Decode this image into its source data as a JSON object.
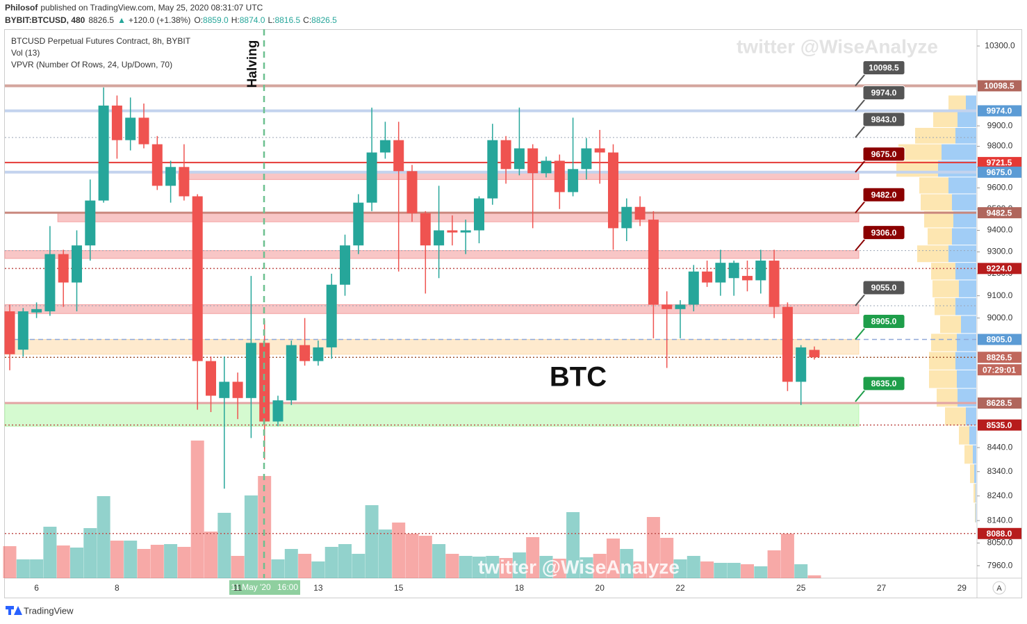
{
  "header": {
    "author": "Philosof",
    "published": "published on TradingView.com, May 25, 2020 08:31:07 UTC",
    "symbol": "BYBIT:BTCUSD, 480",
    "last": "8826.5",
    "arrow": "▲",
    "change": "+120.0 (+1.38%)",
    "o_label": "O:",
    "o": "8859.0",
    "h_label": "H:",
    "h": "8874.0",
    "l_label": "L:",
    "l": "8816.5",
    "c_label": "C:",
    "c": "8826.5"
  },
  "chart_data": {
    "type": "candlestick",
    "title": "BTCUSD Perpetual Futures Contract, 8h, BYBIT",
    "legend": [
      "Vol (13)",
      "VPVR (Number Of Rows, 24, Up/Down, 70)"
    ],
    "annotations": {
      "main": "BTC",
      "event": "Halving",
      "watermark": "twitter @WiseAnalyze",
      "crosshair_date": "11 May '20",
      "crosshair_time": "16:00",
      "countdown": "07:29:01"
    },
    "log_scale": true,
    "grid": false,
    "categories": [
      null,
      null,
      "6",
      null,
      null,
      null,
      null,
      null,
      "8",
      null,
      null,
      null,
      null,
      null,
      null,
      null,
      null,
      "11",
      null,
      null,
      null,
      null,
      null,
      "13",
      null,
      null,
      null,
      null,
      null,
      "15",
      null,
      null,
      null,
      null,
      null,
      null,
      null,
      null,
      "18",
      null,
      null,
      null,
      null,
      null,
      "20",
      null,
      null,
      null,
      null,
      null,
      "22",
      null,
      null,
      null,
      null,
      null,
      null,
      null,
      null,
      "25",
      null,
      null,
      null,
      null,
      null,
      "27",
      null,
      null,
      null,
      null,
      null,
      "29",
      null
    ],
    "open": [
      9030,
      8860,
      9025,
      9030,
      9290,
      9160,
      9330,
      9540,
      10000,
      9830,
      9940,
      9810,
      9610,
      9700,
      9560,
      8810,
      8650,
      8720,
      8650,
      8890,
      8550,
      8640,
      8880,
      8810,
      8870,
      9150,
      9330,
      9530,
      9770,
      9830,
      9680,
      9480,
      9330,
      9400,
      9390,
      9400,
      9550,
      9830,
      9690,
      9790,
      9670,
      9730,
      9580,
      9690,
      9790,
      9770,
      9410,
      9510,
      9450,
      9060,
      9040,
      9060,
      9210,
      9160,
      9180,
      9190,
      9170,
      9260,
      9050,
      8720,
      8859,
      null,
      null,
      null,
      null,
      null,
      null,
      null,
      null,
      null,
      null,
      null,
      null
    ],
    "high": [
      9060,
      9045,
      9070,
      9420,
      9310,
      9400,
      9640,
      10090,
      10050,
      10040,
      10010,
      9850,
      9730,
      9810,
      9570,
      8830,
      8830,
      8760,
      9190,
      8990,
      8660,
      8900,
      9000,
      8900,
      9200,
      9380,
      9570,
      9990,
      9920,
      9920,
      9710,
      9490,
      9610,
      9470,
      9450,
      9560,
      9910,
      9850,
      9990,
      9810,
      9750,
      9760,
      9940,
      9840,
      9880,
      9810,
      9550,
      9560,
      9490,
      9120,
      9080,
      9240,
      9260,
      9310,
      9260,
      9260,
      9310,
      9310,
      9070,
      8880,
      8874,
      null,
      null,
      null,
      null,
      null,
      null,
      null,
      null,
      null,
      null,
      null,
      null
    ],
    "low": [
      8770,
      8830,
      9000,
      9010,
      9050,
      9030,
      9260,
      9530,
      9740,
      9780,
      9790,
      9590,
      9530,
      9540,
      8600,
      8590,
      8270,
      8560,
      8480,
      8390,
      8530,
      8620,
      8790,
      8790,
      8820,
      9100,
      9290,
      9490,
      9740,
      9210,
      9440,
      9110,
      9180,
      9330,
      9290,
      9340,
      9520,
      9620,
      9660,
      9410,
      9650,
      9500,
      9560,
      9640,
      9620,
      9310,
      9350,
      9420,
      8910,
      8780,
      8910,
      9030,
      9140,
      9100,
      9100,
      9120,
      9110,
      9000,
      8680,
      8620,
      8816.5,
      null,
      null,
      null,
      null,
      null,
      null,
      null,
      null,
      null,
      null,
      null,
      null
    ],
    "close": [
      8840,
      9030,
      9040,
      9290,
      9160,
      9330,
      9540,
      10000,
      9830,
      9940,
      9810,
      9610,
      9700,
      9560,
      8810,
      8660,
      8720,
      8650,
      8890,
      8550,
      8640,
      8880,
      8810,
      8870,
      9150,
      9330,
      9530,
      9770,
      9830,
      9680,
      9480,
      9330,
      9400,
      9390,
      9400,
      9550,
      9830,
      9690,
      9790,
      9670,
      9730,
      9580,
      9690,
      9790,
      9770,
      9410,
      9510,
      9450,
      9060,
      9040,
      9060,
      9210,
      9160,
      9250,
      9250,
      9170,
      9260,
      9050,
      8720,
      8870,
      8826.5,
      null,
      null,
      null,
      null,
      null,
      null,
      null,
      null,
      null,
      null,
      null,
      null
    ],
    "volume": [
      46,
      27,
      27,
      74,
      47,
      44,
      72,
      118,
      54,
      54,
      42,
      48,
      49,
      45,
      198,
      67,
      94,
      32,
      119,
      147,
      27,
      42,
      35,
      24,
      45,
      49,
      35,
      105,
      70,
      80,
      64,
      61,
      49,
      35,
      32,
      31,
      32,
      29,
      37,
      59,
      32,
      28,
      95,
      30,
      35,
      57,
      42,
      24,
      88,
      58,
      27,
      32,
      24,
      22,
      22,
      20,
      17,
      40,
      64,
      20,
      4,
      null,
      null,
      null,
      null,
      null,
      null,
      null,
      null,
      null,
      null,
      null,
      null
    ],
    "up_color": "#26a69a",
    "down_color": "#ef5350",
    "ylim": [
      7911,
      10386
    ],
    "yticks": [
      {
        "value": 10300,
        "label": "10300.0"
      },
      {
        "value": 9900,
        "label": "9900.0"
      },
      {
        "value": 9800,
        "label": "9800.0"
      },
      {
        "value": 9700,
        "label": "9700.0"
      },
      {
        "value": 9600,
        "label": "9600.0"
      },
      {
        "value": 9500,
        "label": "9500.0"
      },
      {
        "value": 9400,
        "label": "9400.0"
      },
      {
        "value": 9300,
        "label": "9300.0"
      },
      {
        "value": 9200,
        "label": "9200.0"
      },
      {
        "value": 9100,
        "label": "9100.0"
      },
      {
        "value": 9000,
        "label": "9000.0"
      },
      {
        "value": 8440,
        "label": "8440.0"
      },
      {
        "value": 8340,
        "label": "8340.0"
      },
      {
        "value": 8240,
        "label": "8240.0"
      },
      {
        "value": 8140,
        "label": "8140.0"
      },
      {
        "value": 8050,
        "label": "8050.0"
      },
      {
        "value": 7960,
        "label": "7960.0"
      }
    ],
    "levels": [
      {
        "value": 10098.5,
        "label": "10098.5",
        "color": "#b0665c",
        "line": "#d4a59d",
        "style": "solid",
        "width": 4
      },
      {
        "value": 9974,
        "label": "9974.0",
        "color": "#5b9bd5",
        "line": "#c3d3ee",
        "style": "solid",
        "width": 4
      },
      {
        "value": 9843,
        "label": null,
        "color": null,
        "line": "#9aa5b5",
        "style": "dotted",
        "width": 1
      },
      {
        "value": 9721.5,
        "label": "9721.5",
        "color": "#e53935",
        "line": "#e53935",
        "style": "solid",
        "width": 2
      },
      {
        "value": 9675,
        "label": "9675.0",
        "color": "#5b9bd5",
        "line": "#c3d3ee",
        "style": "solid",
        "width": 4
      },
      {
        "value": 9482.5,
        "label": "9482.5",
        "color": "#b0665c",
        "line": "#c9877d",
        "style": "solid",
        "width": 3
      },
      {
        "value": 9306,
        "label": null,
        "color": null,
        "line": "#9aa5b5",
        "style": "dotted",
        "width": 1
      },
      {
        "value": 9224,
        "label": "9224.0",
        "color": "#b71c1c",
        "line": "#c0504d",
        "style": "dotted",
        "width": 1.5
      },
      {
        "value": 9055,
        "label": null,
        "color": null,
        "line": "#9aa5b5",
        "style": "dotted",
        "width": 1
      },
      {
        "value": 8905,
        "label": "8905.0",
        "color": "#5b9bd5",
        "line": "#8fa8d8",
        "style": "dashed",
        "width": 1.5
      },
      {
        "value": 8826.5,
        "label": "8826.5",
        "color": "#c0675c",
        "line": "#a0522d",
        "style": "dotted",
        "width": 1.5
      },
      {
        "value": 8628.5,
        "label": "8628.5",
        "color": "#b0665c",
        "line": "#e3a3a3",
        "style": "solid",
        "width": 3
      },
      {
        "value": 8535,
        "label": "8535.0",
        "color": "#b71c1c",
        "line": "#c0504d",
        "style": "dotted",
        "width": 1.5
      },
      {
        "value": 8088,
        "label": "8088.0",
        "color": "#b71c1c",
        "line": "#c0504d",
        "style": "dotted",
        "width": 1.5
      }
    ],
    "callouts": [
      {
        "value": 10098.5,
        "label": "10098.5",
        "color": "#555555"
      },
      {
        "value": 9974,
        "label": "9974.0",
        "color": "#555555"
      },
      {
        "value": 9843,
        "label": "9843.0",
        "color": "#555555"
      },
      {
        "value": 9675,
        "label": "9675.0",
        "color": "#8b0000"
      },
      {
        "value": 9482,
        "label": "9482.0",
        "color": "#8b0000"
      },
      {
        "value": 9306,
        "label": "9306.0",
        "color": "#8b0000"
      },
      {
        "value": 9055,
        "label": "9055.0",
        "color": "#555555"
      },
      {
        "value": 8905,
        "label": "8905.0",
        "color": "#1e9e4a"
      },
      {
        "value": 8635,
        "label": "8635.0",
        "color": "#1e9e4a"
      }
    ],
    "zones": [
      {
        "low": 9640,
        "high": 9675,
        "from": 13,
        "to": 63,
        "color": "#f4a0a0"
      },
      {
        "low": 9440,
        "high": 9482.5,
        "from": 4,
        "to": 63,
        "color": "#f4a0a0"
      },
      {
        "low": 9270,
        "high": 9306,
        "from": 0,
        "to": 63,
        "color": "#f4a0a0"
      },
      {
        "low": 9020,
        "high": 9060,
        "from": 0,
        "to": 63,
        "color": "#f4a0a0"
      },
      {
        "low": 8840,
        "high": 8905,
        "from": 0,
        "to": 63,
        "color": "#fddcae"
      },
      {
        "low": 8530,
        "high": 8628.5,
        "from": 0,
        "to": 63,
        "color": "#b9f7b0"
      }
    ],
    "vpvr": {
      "bins": [
        8130,
        8210,
        8290,
        8370,
        8450,
        8530,
        8610,
        8690,
        8770,
        8850,
        8930,
        9010,
        9090,
        9170,
        9250,
        9330,
        9410,
        9490,
        9570,
        9650,
        9730,
        9810,
        9890,
        9970,
        10050
      ],
      "up": [
        1,
        1,
        3,
        5,
        10,
        15,
        27,
        28,
        30,
        28,
        22,
        30,
        25,
        30,
        40,
        35,
        33,
        35,
        40,
        55,
        50,
        30,
        27,
        15
      ],
      "down": [
        1,
        3,
        6,
        12,
        15,
        30,
        30,
        40,
        38,
        37,
        30,
        30,
        38,
        35,
        45,
        35,
        42,
        45,
        42,
        60,
        62,
        58,
        35,
        25
      ],
      "up_color": "#90c4f4",
      "down_color": "#fde3a8"
    }
  },
  "footer": {
    "brand": "TradingView",
    "button": "A"
  }
}
